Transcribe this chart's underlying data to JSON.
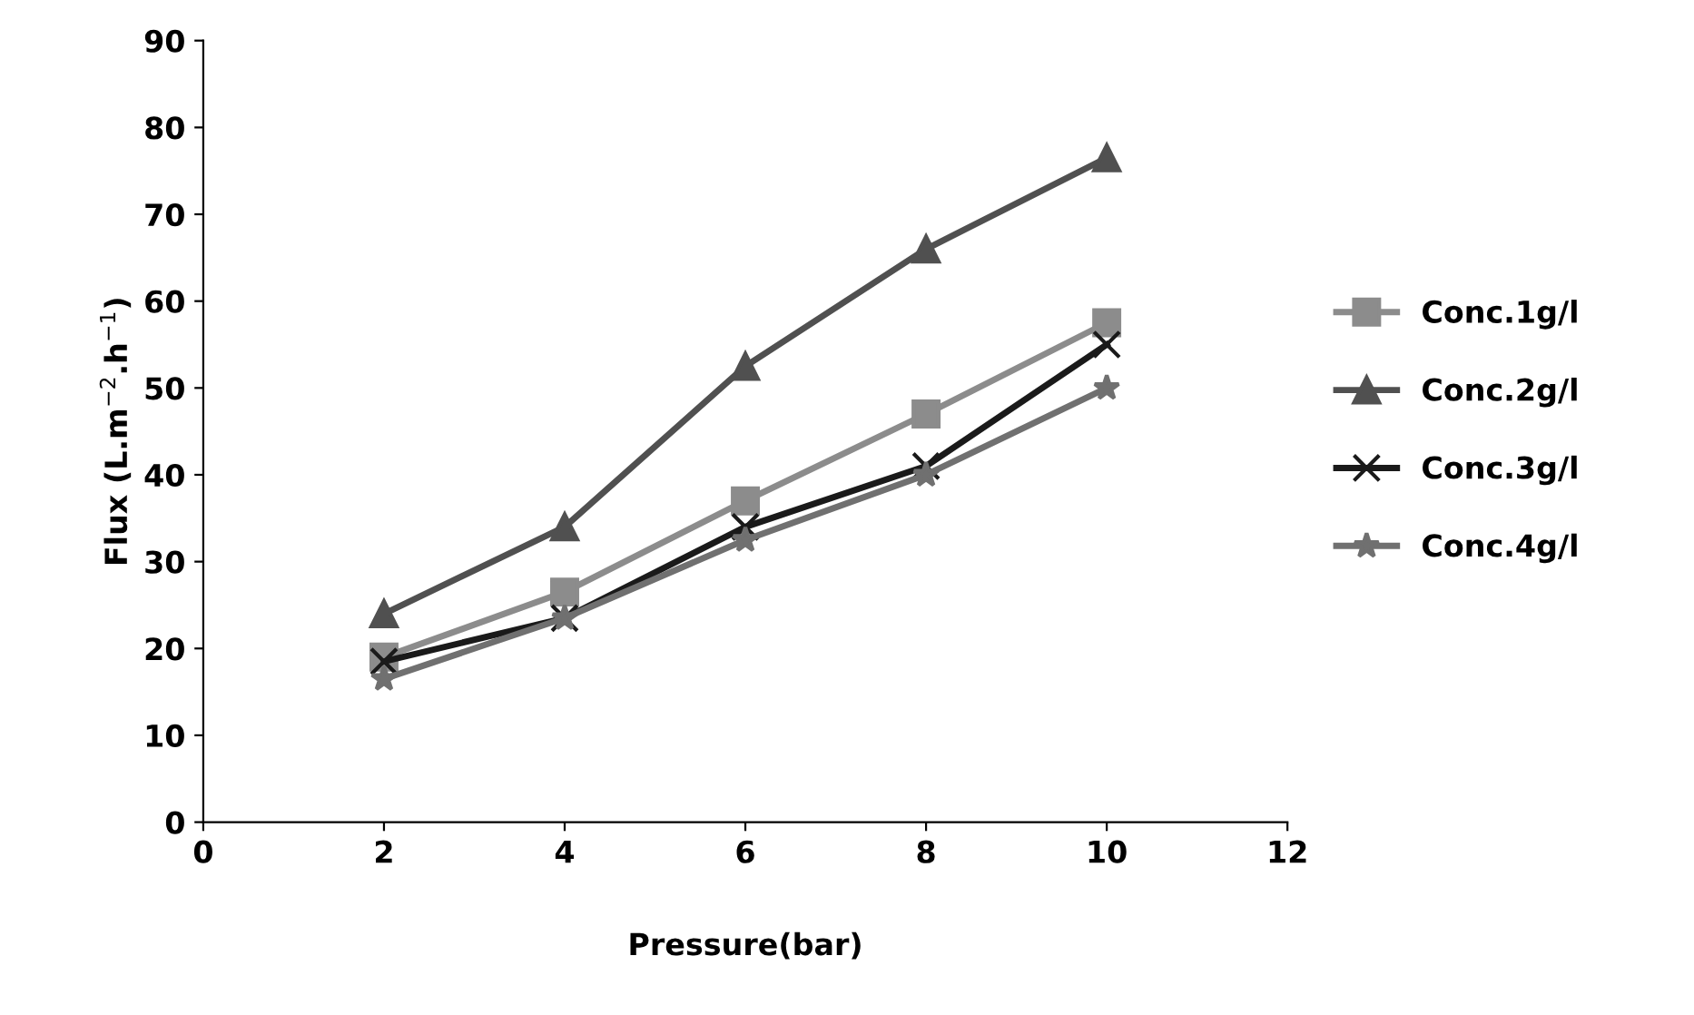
{
  "chart_data": {
    "type": "line",
    "xlabel": "Pressure(bar)",
    "ylabel": "Flux (L.m$^{−2}$.h$^{−1}$)",
    "x": [
      2,
      4,
      6,
      8,
      10
    ],
    "series": [
      {
        "name": "Conc.1g/l",
        "color": "#8c8c8c",
        "marker": "square",
        "values": [
          19,
          26.5,
          37,
          47,
          57.5
        ]
      },
      {
        "name": "Conc.2g/l",
        "color": "#505050",
        "marker": "triangle",
        "values": [
          24,
          34,
          52.5,
          66,
          76.5
        ]
      },
      {
        "name": "Conc.3g/l",
        "color": "#1a1a1a",
        "marker": "cross",
        "values": [
          18.5,
          23.5,
          34,
          41,
          55
        ]
      },
      {
        "name": "Conc.4g/l",
        "color": "#707070",
        "marker": "star",
        "values": [
          16.5,
          23.5,
          32.5,
          40,
          50
        ]
      }
    ],
    "xlim": [
      0,
      12
    ],
    "xticks": [
      0,
      2,
      4,
      6,
      8,
      10,
      12
    ],
    "ylim": [
      0,
      90
    ],
    "yticks": [
      0,
      10,
      20,
      30,
      40,
      50,
      60,
      70,
      80,
      90
    ],
    "grid": false,
    "legend": "right",
    "line_style": "solid"
  }
}
